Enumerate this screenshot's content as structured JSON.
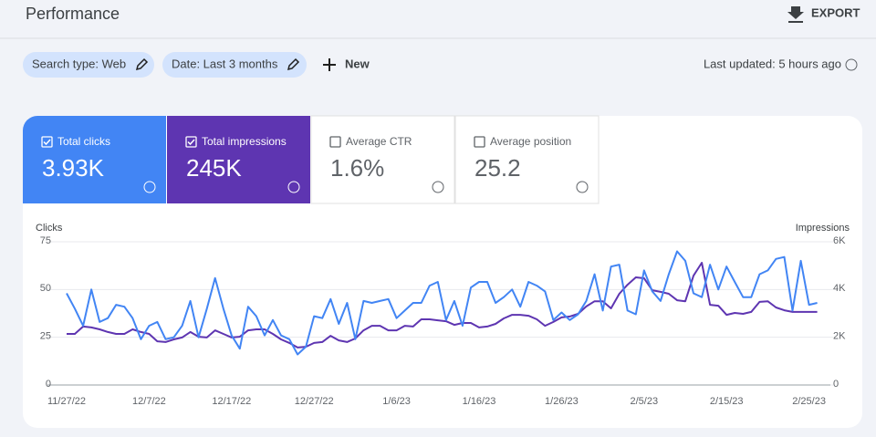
{
  "header": {
    "title": "Performance",
    "export": "EXPORT"
  },
  "toolbar": {
    "filters": [
      "Search type: Web",
      "Date: Last 3 months"
    ],
    "new_button": "New",
    "last_updated": "Last updated: 5 hours ago"
  },
  "metrics": [
    {
      "label": "Total clicks",
      "value": "3.93K",
      "selected": true,
      "color": "#4285f4"
    },
    {
      "label": "Total impressions",
      "value": "245K",
      "selected": true,
      "color": "#5e35b1"
    },
    {
      "label": "Average CTR",
      "value": "1.6%",
      "selected": false
    },
    {
      "label": "Average position",
      "value": "25.2",
      "selected": false
    }
  ],
  "chart_data": {
    "type": "line",
    "categories": [
      "11/27/22",
      null,
      null,
      null,
      null,
      null,
      null,
      null,
      null,
      null,
      "12/7/22",
      null,
      null,
      null,
      null,
      null,
      null,
      null,
      null,
      null,
      "12/17/22",
      null,
      null,
      null,
      null,
      null,
      null,
      null,
      null,
      null,
      "12/27/22",
      null,
      null,
      null,
      null,
      null,
      null,
      null,
      null,
      null,
      "1/6/23",
      null,
      null,
      null,
      null,
      null,
      null,
      null,
      null,
      null,
      "1/16/23",
      null,
      null,
      null,
      null,
      null,
      null,
      null,
      null,
      null,
      "1/26/23",
      null,
      null,
      null,
      null,
      null,
      null,
      null,
      null,
      null,
      "2/5/23",
      null,
      null,
      null,
      null,
      null,
      null,
      null,
      null,
      null,
      "2/15/23",
      null,
      null,
      null,
      null,
      null,
      null,
      null,
      null,
      null,
      "2/25/23",
      null
    ],
    "series": [
      {
        "name": "Clicks",
        "color": "#4285f4",
        "values": [
          48,
          40,
          31,
          50,
          33,
          35,
          42,
          41,
          35,
          24,
          31,
          33,
          24,
          25,
          31,
          44,
          25,
          40,
          56,
          40,
          26,
          19,
          41,
          36,
          26,
          34,
          26,
          24,
          16,
          20,
          36,
          35,
          45,
          32,
          43,
          24,
          44,
          43,
          44,
          45,
          35,
          39,
          43,
          43,
          52,
          54,
          34,
          44,
          31,
          51,
          54,
          54,
          43,
          46,
          50,
          41,
          54,
          52,
          49,
          34,
          38,
          34,
          37,
          44,
          58,
          39,
          62,
          63,
          39,
          37,
          60,
          49,
          44,
          58,
          70,
          65,
          48,
          46,
          63,
          50,
          62,
          54,
          46,
          46,
          58,
          60,
          66,
          67,
          39,
          65,
          42,
          43
        ]
      },
      {
        "name": "Impressions",
        "color": "#5e35b1",
        "axis": "y2",
        "values": [
          2140,
          2140,
          2450,
          2410,
          2330,
          2220,
          2140,
          2140,
          2330,
          2220,
          2140,
          1830,
          1800,
          1910,
          1990,
          2220,
          2020,
          1990,
          2290,
          2140,
          1990,
          2020,
          2290,
          2330,
          2330,
          2140,
          1910,
          1760,
          1570,
          1600,
          1760,
          1800,
          2060,
          1870,
          1800,
          1950,
          2290,
          2480,
          2480,
          2290,
          2290,
          2480,
          2450,
          2750,
          2750,
          2710,
          2670,
          2520,
          2600,
          2600,
          2410,
          2450,
          2560,
          2790,
          2940,
          2940,
          2900,
          2750,
          2480,
          2640,
          2830,
          2870,
          2980,
          3290,
          3510,
          3510,
          3210,
          3820,
          4200,
          4510,
          4470,
          3970,
          3900,
          3820,
          3550,
          3510,
          4580,
          5120,
          3360,
          3320,
          2940,
          3020,
          2980,
          3060,
          3480,
          3510,
          3250,
          3130,
          3060,
          3060,
          3060,
          3060
        ]
      }
    ],
    "ylim": [
      0,
      75
    ],
    "yticks": [
      0,
      25,
      50,
      75
    ],
    "y2lim": [
      0,
      6000
    ],
    "y2ticks": [
      0,
      {
        "value": 2000,
        "label": "2K"
      },
      {
        "value": 4000,
        "label": "4K"
      },
      {
        "value": 6000,
        "label": "6K"
      }
    ],
    "grid": true
  }
}
